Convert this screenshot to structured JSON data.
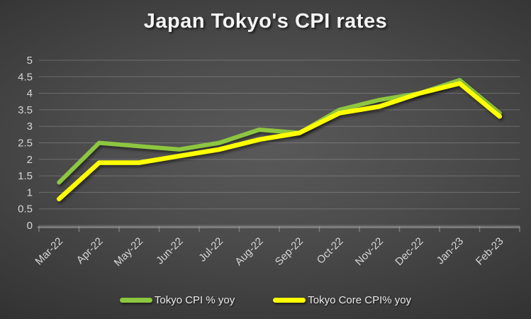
{
  "chart_data": {
    "type": "line",
    "title": "Japan Tokyo's CPI rates",
    "categories": [
      "Mar-22",
      "Apr-22",
      "May-22",
      "Jun-22",
      "Jul-22",
      "Aug-22",
      "Sep-22",
      "Oct-22",
      "Nov-22",
      "Dec-22",
      "Jan-23",
      "Feb-23"
    ],
    "series": [
      {
        "name": "Tokyo CPI % yoy",
        "color": "#8dc63f",
        "values": [
          1.3,
          2.5,
          2.4,
          2.3,
          2.5,
          2.9,
          2.8,
          3.5,
          3.8,
          4.0,
          4.4,
          3.4
        ]
      },
      {
        "name": "Tokyo Core CPI% yoy",
        "color": "#ffff00",
        "values": [
          0.8,
          1.9,
          1.9,
          2.1,
          2.3,
          2.6,
          2.8,
          3.4,
          3.6,
          4.0,
          4.3,
          3.3
        ]
      }
    ],
    "ylim": [
      0,
      5
    ],
    "ytick_step": 0.5,
    "ytick_labels": [
      "0",
      "0.5",
      "1",
      "1.5",
      "2",
      "2.5",
      "3",
      "3.5",
      "4",
      "4.5",
      "5"
    ],
    "grid": true,
    "legend_position": "bottom",
    "xlabel": "",
    "ylabel": ""
  },
  "colors": {
    "background_center": "#575757",
    "background_edge": "#242424",
    "gridline": "rgba(222,222,222,0.25)",
    "axis_line": "rgba(165,165,165,0.55)",
    "axis_text": "#d6d6d6",
    "title_text": "#f5f5f5"
  }
}
